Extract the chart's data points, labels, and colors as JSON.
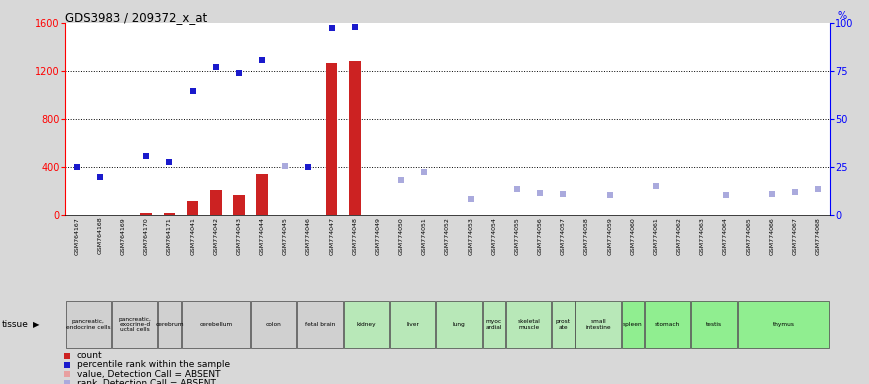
{
  "title": "GDS3983 / 209372_x_at",
  "samples": [
    "GSM764167",
    "GSM764168",
    "GSM764169",
    "GSM764170",
    "GSM764171",
    "GSM774041",
    "GSM774042",
    "GSM774043",
    "GSM774044",
    "GSM774045",
    "GSM774046",
    "GSM774047",
    "GSM774048",
    "GSM774049",
    "GSM774050",
    "GSM774051",
    "GSM774052",
    "GSM774053",
    "GSM774054",
    "GSM774055",
    "GSM774056",
    "GSM774057",
    "GSM774058",
    "GSM774059",
    "GSM774060",
    "GSM774061",
    "GSM774062",
    "GSM774063",
    "GSM774064",
    "GSM774065",
    "GSM774066",
    "GSM774067",
    "GSM774068"
  ],
  "count_values": [
    0,
    0,
    0,
    15,
    15,
    120,
    210,
    165,
    340,
    0,
    0,
    1270,
    1285,
    0,
    0,
    0,
    0,
    0,
    0,
    0,
    0,
    0,
    0,
    0,
    0,
    0,
    0,
    0,
    0,
    0,
    0,
    0,
    0
  ],
  "count_absent": [
    true,
    true,
    false,
    false,
    false,
    false,
    false,
    false,
    false,
    true,
    true,
    false,
    false,
    true,
    true,
    true,
    true,
    true,
    true,
    true,
    true,
    true,
    true,
    true,
    true,
    true,
    true,
    true,
    true,
    true,
    true,
    true,
    true
  ],
  "rank_values": [
    400,
    320,
    0,
    490,
    440,
    1030,
    1230,
    1180,
    1290,
    410,
    400,
    1560,
    1565,
    0,
    290,
    360,
    0,
    130,
    0,
    220,
    180,
    175,
    0,
    165,
    0,
    240,
    0,
    0,
    170,
    0,
    175,
    195,
    215
  ],
  "rank_absent": [
    false,
    false,
    true,
    false,
    false,
    false,
    false,
    false,
    false,
    true,
    false,
    false,
    false,
    true,
    true,
    true,
    true,
    true,
    true,
    true,
    true,
    true,
    true,
    true,
    true,
    true,
    true,
    true,
    true,
    true,
    true,
    true,
    true
  ],
  "ylim_left": [
    0,
    1600
  ],
  "ylim_right": [
    0,
    100
  ],
  "yticks_left": [
    0,
    400,
    800,
    1200,
    1600
  ],
  "yticks_right": [
    0,
    25,
    50,
    75,
    100
  ],
  "tissues": [
    {
      "label": "pancreatic,\nendocrine cells",
      "start": 0,
      "end": 1,
      "color": "#d0d0d0"
    },
    {
      "label": "pancreatic,\nexocrine-d\nuctal cells",
      "start": 2,
      "end": 3,
      "color": "#d0d0d0"
    },
    {
      "label": "cerebrum",
      "start": 4,
      "end": 4,
      "color": "#d0d0d0"
    },
    {
      "label": "cerebellum",
      "start": 5,
      "end": 7,
      "color": "#d0d0d0"
    },
    {
      "label": "colon",
      "start": 8,
      "end": 9,
      "color": "#d0d0d0"
    },
    {
      "label": "fetal brain",
      "start": 10,
      "end": 11,
      "color": "#d0d0d0"
    },
    {
      "label": "kidney",
      "start": 12,
      "end": 13,
      "color": "#b8e8b8"
    },
    {
      "label": "liver",
      "start": 14,
      "end": 15,
      "color": "#b8e8b8"
    },
    {
      "label": "lung",
      "start": 16,
      "end": 17,
      "color": "#b8e8b8"
    },
    {
      "label": "myoc\nardial",
      "start": 18,
      "end": 18,
      "color": "#b8e8b8"
    },
    {
      "label": "skeletal\nmuscle",
      "start": 19,
      "end": 20,
      "color": "#b8e8b8"
    },
    {
      "label": "prost\nate",
      "start": 21,
      "end": 21,
      "color": "#b8e8b8"
    },
    {
      "label": "small\nintestine",
      "start": 22,
      "end": 23,
      "color": "#b8e8b8"
    },
    {
      "label": "spleen",
      "start": 24,
      "end": 24,
      "color": "#90ee90"
    },
    {
      "label": "stomach",
      "start": 25,
      "end": 26,
      "color": "#90ee90"
    },
    {
      "label": "testis",
      "start": 27,
      "end": 28,
      "color": "#90ee90"
    },
    {
      "label": "thymus",
      "start": 29,
      "end": 32,
      "color": "#90ee90"
    }
  ],
  "bar_color_present": "#cc2222",
  "bar_color_absent": "#e8a0a0",
  "rank_color_present": "#1a1acc",
  "rank_color_absent": "#aaaadd",
  "background_color": "#d8d8d8",
  "plot_bg_color": "#ffffff",
  "legend_items": [
    {
      "label": "count",
      "color": "#cc2222"
    },
    {
      "label": "percentile rank within the sample",
      "color": "#1a1acc"
    },
    {
      "label": "value, Detection Call = ABSENT",
      "color": "#e8a0a0"
    },
    {
      "label": "rank, Detection Call = ABSENT",
      "color": "#aaaadd"
    }
  ]
}
